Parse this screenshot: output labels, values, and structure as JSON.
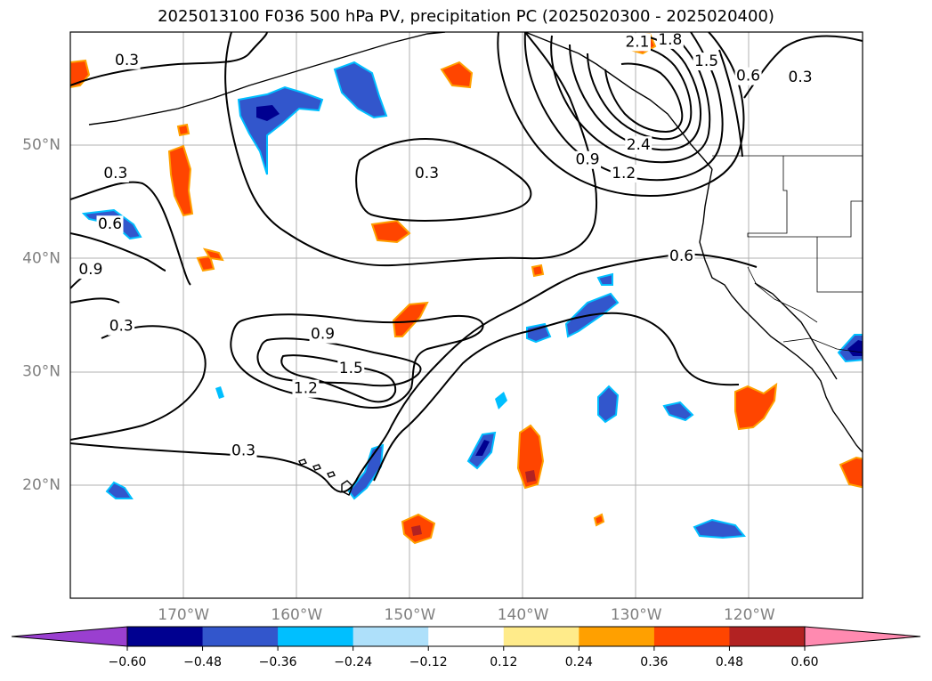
{
  "title": "2025013100 F036 500 hPa PV, precipitation PC (2025020300 - 2025020400)",
  "map": {
    "lon_range": [
      -180,
      -110
    ],
    "lat_range": [
      10,
      60
    ],
    "lat_labels": [
      {
        "lat": 50,
        "text": "50°N"
      },
      {
        "lat": 40,
        "text": "40°N"
      },
      {
        "lat": 30,
        "text": "30°N"
      },
      {
        "lat": 20,
        "text": "20°N"
      }
    ],
    "lon_labels": [
      {
        "lon": -170,
        "text": "170°W"
      },
      {
        "lon": -160,
        "text": "160°W"
      },
      {
        "lon": -150,
        "text": "150°W"
      },
      {
        "lon": -140,
        "text": "140°W"
      },
      {
        "lon": -130,
        "text": "130°W"
      },
      {
        "lon": -120,
        "text": "120°W"
      }
    ],
    "contour_labels": [
      {
        "text": "0.3",
        "lon": -175,
        "lat": 57.5
      },
      {
        "text": "0.3",
        "lon": -176,
        "lat": 47.5
      },
      {
        "text": "0.6",
        "lon": -176.5,
        "lat": 43.0
      },
      {
        "text": "0.9",
        "lon": -178.2,
        "lat": 39.0
      },
      {
        "text": "0.3",
        "lon": -175.5,
        "lat": 34.0
      },
      {
        "text": "0.3",
        "lon": -148.5,
        "lat": 47.5
      },
      {
        "text": "0.9",
        "lon": -157.7,
        "lat": 33.3
      },
      {
        "text": "1.5",
        "lon": -155.2,
        "lat": 30.3
      },
      {
        "text": "1.2",
        "lon": -159.2,
        "lat": 28.5
      },
      {
        "text": "0.3",
        "lon": -164.7,
        "lat": 23.0
      },
      {
        "text": "0.6",
        "lon": -126,
        "lat": 40.2
      },
      {
        "text": "0.9",
        "lon": -134.3,
        "lat": 48.7
      },
      {
        "text": "1.2",
        "lon": -131.1,
        "lat": 47.5
      },
      {
        "text": "2.4",
        "lon": -129.8,
        "lat": 50.0
      },
      {
        "text": "2.1",
        "lon": -129.9,
        "lat": 59.1
      },
      {
        "text": "1.8",
        "lon": -127.0,
        "lat": 59.3
      },
      {
        "text": "1.5",
        "lon": -123.8,
        "lat": 57.4
      },
      {
        "text": "0.6",
        "lon": -120.1,
        "lat": 56.1
      },
      {
        "text": "0.3",
        "lon": -115.5,
        "lat": 56.0
      }
    ]
  },
  "colorbar": {
    "ticks": [
      "−0.60",
      "−0.48",
      "−0.36",
      "−0.24",
      "−0.12",
      "0.12",
      "0.24",
      "0.36",
      "0.48",
      "0.60"
    ],
    "under_color": "#9a3fd0",
    "over_color": "#ff8ab0",
    "colors": [
      "#9a3fd0",
      "#000090",
      "#3256cc",
      "#00bfff",
      "#aee0fa",
      "#ffffff",
      "#ffeb8a",
      "#ffa000",
      "#ff4500",
      "#b22222",
      "#ff8ab0"
    ]
  }
}
